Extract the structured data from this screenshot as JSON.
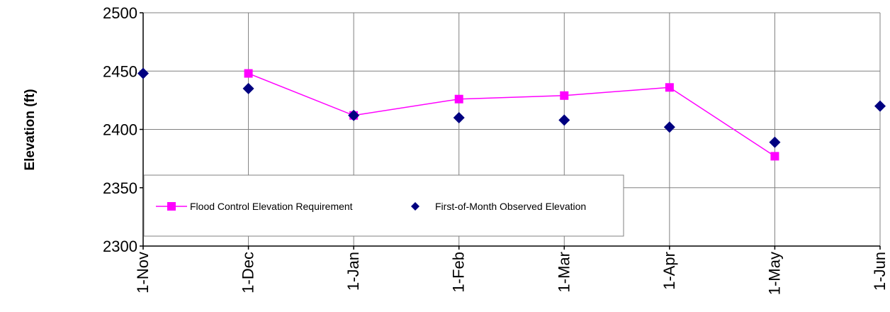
{
  "chart_data": {
    "type": "line",
    "ylabel": "Elevation (ft)",
    "xlabel": "",
    "title": "",
    "x_ticks": [
      "1-Nov",
      "1-Dec",
      "1-Jan",
      "1-Feb",
      "1-Mar",
      "1-Apr",
      "1-May",
      "1-Jun"
    ],
    "y_ticks": [
      "2300",
      "2350",
      "2400",
      "2450",
      "2500"
    ],
    "ylim": [
      2300,
      2500
    ],
    "grid": true,
    "legend_position": "bottom-left",
    "series": [
      {
        "name": "Flood Control Elevation Requirement",
        "marker": "square",
        "color": "#ff00ff",
        "line": true,
        "points": [
          {
            "x": "1-Dec",
            "y": 2448
          },
          {
            "x": "1-Jan",
            "y": 2412
          },
          {
            "x": "1-Feb",
            "y": 2426
          },
          {
            "x": "1-Mar",
            "y": 2429
          },
          {
            "x": "1-Apr",
            "y": 2436
          },
          {
            "x": "1-May",
            "y": 2377
          }
        ]
      },
      {
        "name": "First-of-Month Observed Elevation",
        "marker": "diamond",
        "color": "#000080",
        "line": false,
        "points": [
          {
            "x": "1-Nov",
            "y": 2448
          },
          {
            "x": "1-Dec",
            "y": 2435
          },
          {
            "x": "1-Jan",
            "y": 2412
          },
          {
            "x": "1-Feb",
            "y": 2410
          },
          {
            "x": "1-Mar",
            "y": 2408
          },
          {
            "x": "1-Apr",
            "y": 2402
          },
          {
            "x": "1-May",
            "y": 2389
          },
          {
            "x": "1-Jun",
            "y": 2420
          }
        ]
      }
    ]
  }
}
